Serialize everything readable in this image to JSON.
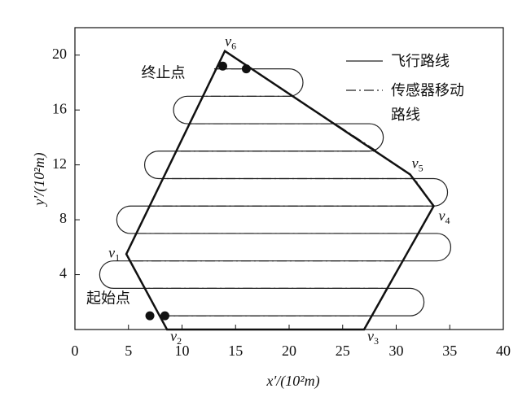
{
  "chart_data": {
    "type": "line",
    "xlabel": "x′/(10²m)",
    "ylabel": "y′/(10²m)",
    "xlim": [
      0,
      40
    ],
    "ylim": [
      0,
      22
    ],
    "xticks": [
      0,
      5,
      10,
      15,
      20,
      25,
      30,
      35,
      40
    ],
    "yticks": [
      4,
      8,
      12,
      16,
      20
    ],
    "polygon": {
      "color": "#111",
      "x": [
        4.8,
        8.6,
        27,
        33.5,
        31.3,
        14
      ],
      "y": [
        5.5,
        0,
        0,
        9,
        11.3,
        20.3
      ],
      "labels": [
        {
          "main": "v",
          "sub": "1"
        },
        {
          "main": "v",
          "sub": "2"
        },
        {
          "main": "v",
          "sub": "3"
        },
        {
          "main": "v",
          "sub": "4"
        },
        {
          "main": "v",
          "sub": "5"
        },
        {
          "main": "v",
          "sub": "6"
        }
      ]
    },
    "series": [
      {
        "name": "飞行路线",
        "color": "#222",
        "style": "solid",
        "x": [
          8.5,
          31.3,
          31.3,
          3.6,
          3.6,
          33.8,
          33.8,
          5.2,
          5.2,
          33.5,
          33.5,
          7.8,
          7.8,
          27.5,
          27.5,
          10.5,
          10.5,
          20,
          20,
          13
        ],
        "y": [
          1,
          1,
          3,
          3,
          5,
          5,
          7,
          7,
          9,
          9,
          11,
          11,
          13,
          13,
          15,
          15,
          17,
          17,
          19,
          19
        ]
      },
      {
        "name": "传感器移动路线",
        "color": "#222",
        "style": "dashdot",
        "x": [
          8,
          27.7,
          29.1,
          6.5,
          5.1,
          30.6,
          32.1,
          5.7,
          7,
          33.5,
          31.7,
          8.2,
          9.5,
          28.2,
          24.3,
          10.7,
          12,
          20.4,
          16.5,
          13.2
        ],
        "y": [
          1,
          1,
          3,
          3,
          5,
          5,
          7,
          7,
          9,
          9,
          11,
          11,
          13,
          13,
          15,
          15,
          17,
          17,
          19,
          19
        ]
      }
    ],
    "markers": [
      {
        "text": "起始点",
        "x": [
          7,
          8.4
        ],
        "y": [
          1,
          1
        ]
      },
      {
        "text": "终止点",
        "x": [
          13.8,
          16
        ],
        "y": [
          19.2,
          19
        ]
      }
    ]
  }
}
